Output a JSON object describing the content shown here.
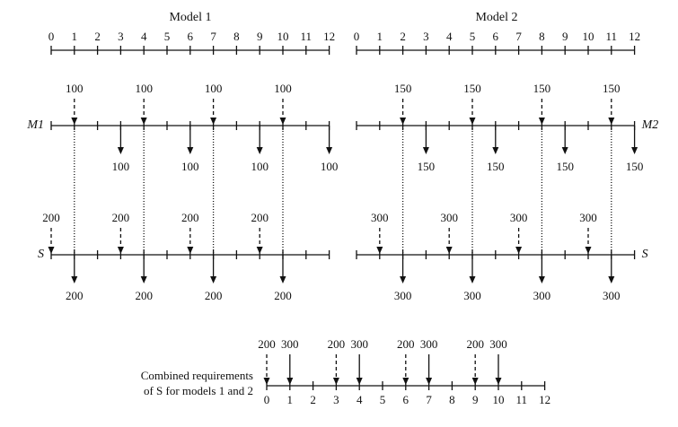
{
  "panels": [
    {
      "title": "Model 1",
      "periods": [
        0,
        1,
        2,
        3,
        4,
        5,
        6,
        7,
        8,
        9,
        10,
        11,
        12
      ],
      "rows": [
        {
          "label": "M1",
          "releases": [
            {
              "period": 1,
              "quantity": 100
            },
            {
              "period": 4,
              "quantity": 100
            },
            {
              "period": 7,
              "quantity": 100
            },
            {
              "period": 10,
              "quantity": 100
            }
          ],
          "receipts": [
            {
              "period": 3,
              "quantity": 100
            },
            {
              "period": 6,
              "quantity": 100
            },
            {
              "period": 9,
              "quantity": 100
            },
            {
              "period": 12,
              "quantity": 100
            }
          ]
        },
        {
          "label": "S",
          "releases": [
            {
              "period": 0,
              "quantity": 200
            },
            {
              "period": 3,
              "quantity": 200
            },
            {
              "period": 6,
              "quantity": 200
            },
            {
              "period": 9,
              "quantity": 200
            }
          ],
          "receipts": [
            {
              "period": 1,
              "quantity": 200
            },
            {
              "period": 4,
              "quantity": 200
            },
            {
              "period": 7,
              "quantity": 200
            },
            {
              "period": 10,
              "quantity": 200
            }
          ]
        }
      ]
    },
    {
      "title": "Model 2",
      "periods": [
        0,
        1,
        2,
        3,
        4,
        5,
        6,
        7,
        8,
        9,
        10,
        11,
        12
      ],
      "rows": [
        {
          "label": "M2",
          "releases": [
            {
              "period": 2,
              "quantity": 150
            },
            {
              "period": 5,
              "quantity": 150
            },
            {
              "period": 8,
              "quantity": 150
            },
            {
              "period": 11,
              "quantity": 150
            }
          ],
          "receipts": [
            {
              "period": 3,
              "quantity": 150
            },
            {
              "period": 6,
              "quantity": 150
            },
            {
              "period": 9,
              "quantity": 150
            },
            {
              "period": 12,
              "quantity": 150
            }
          ]
        },
        {
          "label": "S",
          "releases": [
            {
              "period": 1,
              "quantity": 300
            },
            {
              "period": 4,
              "quantity": 300
            },
            {
              "period": 7,
              "quantity": 300
            },
            {
              "period": 10,
              "quantity": 300
            }
          ],
          "receipts": [
            {
              "period": 2,
              "quantity": 300
            },
            {
              "period": 5,
              "quantity": 300
            },
            {
              "period": 8,
              "quantity": 300
            },
            {
              "period": 11,
              "quantity": 300
            }
          ]
        }
      ]
    }
  ],
  "combined": {
    "note": [
      "Combined requirements",
      "of S for models 1 and 2"
    ],
    "periods": [
      0,
      1,
      2,
      3,
      4,
      5,
      6,
      7,
      8,
      9,
      10,
      11,
      12
    ],
    "requirements": [
      {
        "period": 0,
        "quantity": 200
      },
      {
        "period": 1,
        "quantity": 300
      },
      {
        "period": 3,
        "quantity": 200
      },
      {
        "period": 4,
        "quantity": 300
      },
      {
        "period": 6,
        "quantity": 200
      },
      {
        "period": 7,
        "quantity": 300
      },
      {
        "period": 9,
        "quantity": 200
      },
      {
        "period": 10,
        "quantity": 300
      }
    ]
  }
}
